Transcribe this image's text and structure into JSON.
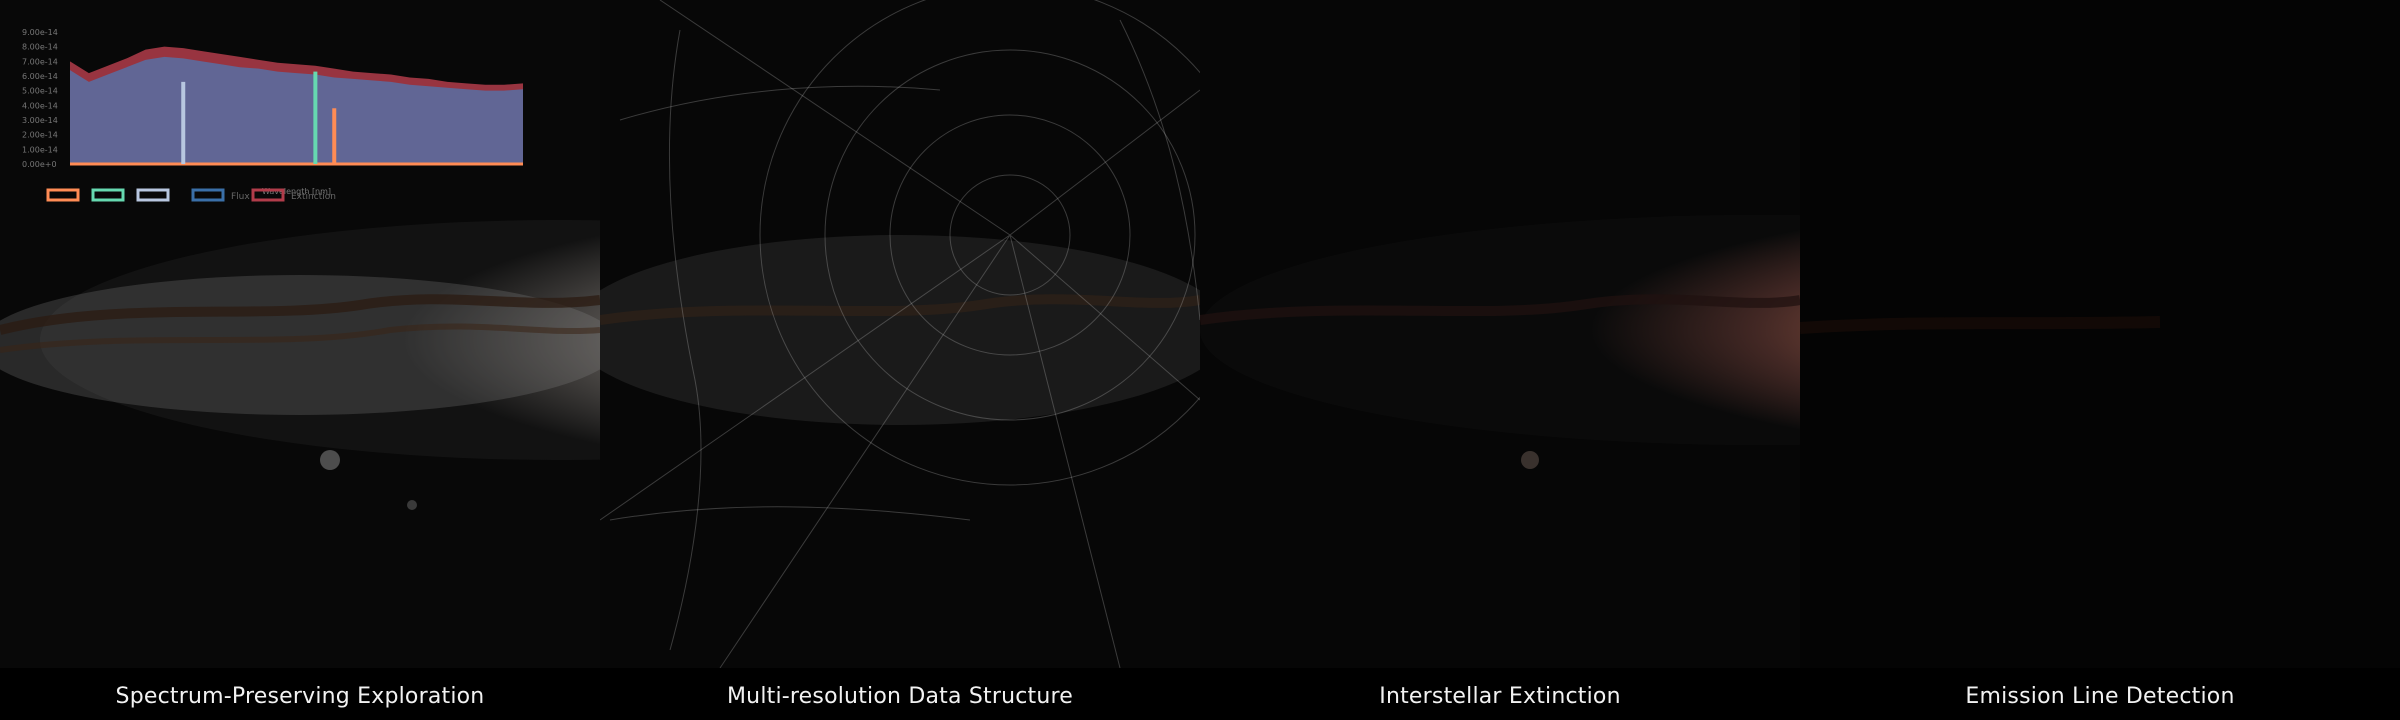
{
  "captions": {
    "p1": "Spectrum-Preserving Exploration",
    "p2": "Multi-resolution Data Structure",
    "p3": "Interstellar Extinction",
    "p4": "Emission Line Detection"
  },
  "inset_chart": {
    "y_ticks": [
      "9.00e-14",
      "8.00e-14",
      "7.00e-14",
      "6.00e-14",
      "5.00e-14",
      "4.00e-14",
      "3.00e-14",
      "2.00e-14",
      "1.00e-14",
      "0.00e+0"
    ],
    "xlabel": "Wavelength [nm]",
    "legend": [
      "",
      "",
      "",
      "Flux",
      "Extinction"
    ]
  },
  "chart_data": {
    "type": "area",
    "series": [
      {
        "name": "Flux",
        "values": [
          6.4,
          5.6,
          6.1,
          6.6,
          7.1,
          7.3,
          7.2,
          7.0,
          6.8,
          6.6,
          6.5,
          6.3,
          6.2,
          6.1,
          5.9,
          5.8,
          5.7,
          5.6,
          5.4,
          5.3,
          5.2,
          5.1,
          5.0,
          5.0,
          5.1
        ]
      },
      {
        "name": "Extinction",
        "values": [
          7.0,
          6.2,
          6.7,
          7.2,
          7.8,
          8.0,
          7.9,
          7.7,
          7.5,
          7.3,
          7.1,
          6.9,
          6.8,
          6.7,
          6.5,
          6.3,
          6.2,
          6.1,
          5.9,
          5.8,
          5.6,
          5.5,
          5.4,
          5.4,
          5.5
        ]
      }
    ],
    "spikes": [
      {
        "x_index": 6,
        "value": 5.6,
        "color": "#b8c7e0"
      },
      {
        "x_index": 13,
        "value": 6.3,
        "color": "#66d9b0"
      },
      {
        "x_index": 14,
        "value": 3.8,
        "color": "#ff8c55"
      }
    ],
    "ylim": [
      0,
      9
    ]
  },
  "colors": {
    "accent_orange": "#ff8c55",
    "accent_green": "#66d9b0",
    "accent_lavender": "#b8c7e0",
    "accent_blue": "#3a6fa8",
    "accent_red": "#b13c4a"
  }
}
